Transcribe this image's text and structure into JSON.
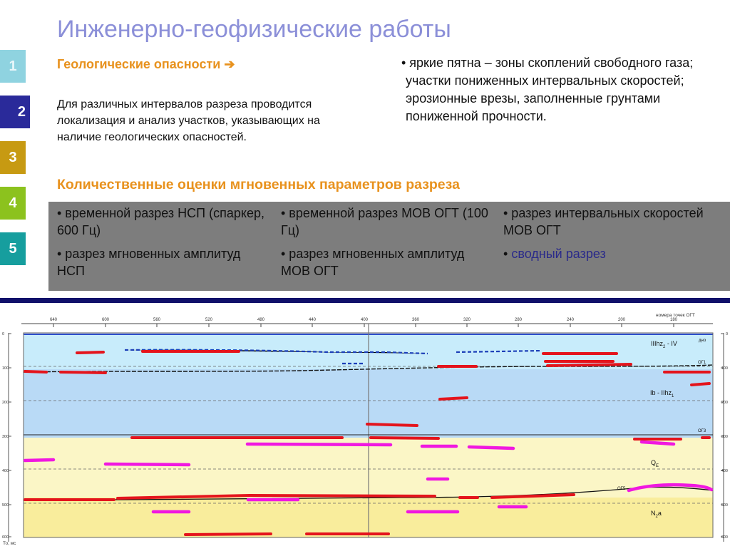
{
  "title": "Инженерно-геофизические работы",
  "tabs": [
    "1",
    "2",
    "3",
    "4",
    "5"
  ],
  "hazards": {
    "heading": "Геологические опасности",
    "arrow": "➔",
    "intro": "Для различных интервалов разреза проводится локализация и анализ участков, указывающих на наличие геологических опасностей.",
    "bullets": [
      "• яркие пятна – зоны скоплений свободного газа;",
      "участки пониженных интервальных скоростей;",
      "эрозионные врезы, заполненные грунтами пониженной прочности."
    ]
  },
  "quant": {
    "heading": "Количественные оценки мгновенных параметров разреза",
    "col1": [
      "• временной разрез НСП (спаркер, 600 Гц)",
      "• разрез мгновенных амплитуд НСП"
    ],
    "col2": [
      "• временной разрез МОВ ОГТ (100 Гц)",
      "• разрез мгновенных амплитуд МОВ ОГТ"
    ],
    "col3_item1": "• разрез интервальных скоростей МОВ ОГТ",
    "col3_item2_bullet": "•",
    "col3_item2_link": "сводный разрез"
  },
  "section": {
    "top_axis_title": "номера точек ОГТ",
    "top_ticks": [
      "640",
      "600",
      "560",
      "520",
      "480",
      "440",
      "400",
      "360",
      "320",
      "280",
      "240",
      "200",
      "180"
    ],
    "depth_ticks": [
      "0",
      "100",
      "200",
      "300",
      "400",
      "500",
      "600"
    ],
    "depth_unit": "То, мс",
    "labels": {
      "dno": "дно",
      "og1": "ОГ1",
      "og3": "ОГ3",
      "og5": "ОГ5",
      "unit1_main": "IIIhz",
      "unit1_sub": "2",
      "unit1_tail": " - IV",
      "unit2_main": "Ib - IIhz",
      "unit2_sub": "1",
      "unit3_main": "Q",
      "unit3_sub": "E",
      "unit4_main": "N",
      "unit4_sub": "2",
      "unit4_tail": "a"
    },
    "colors": {
      "water": "#c8ecfb",
      "layer_blue": "#b9daf6",
      "layer_pale_yellow": "#fbf6c6",
      "layer_yellow": "#f9ed9c",
      "gas_zone": "#e4141c",
      "velocity_anomaly": "#f018e0",
      "horizon": "#111111",
      "water_horizon": "#2b4dcc"
    }
  }
}
